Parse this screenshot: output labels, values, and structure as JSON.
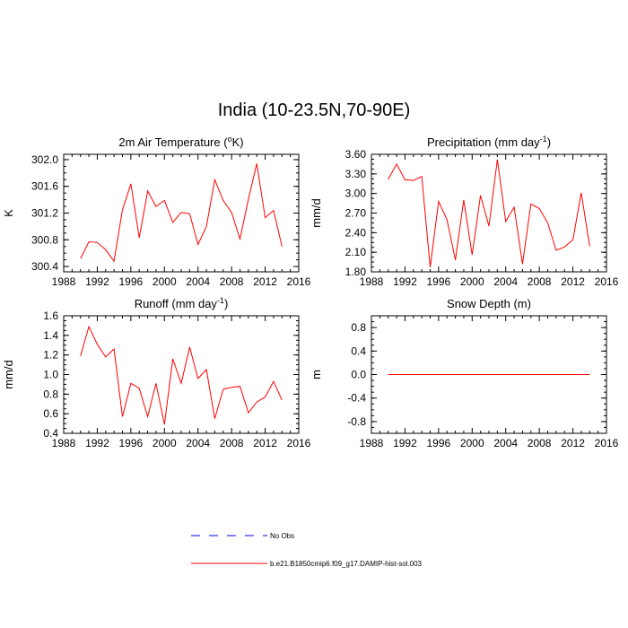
{
  "title": "India (10-23.5N,70-90E)",
  "colors": {
    "model": "#ff0000",
    "obs": "#0000ff",
    "axis": "#000000"
  },
  "legend": [
    {
      "label": "No Obs",
      "style": "dashed",
      "color": "#0000ff"
    },
    {
      "label": "b.e21.B1850cmip6.f09_g17.DAMIP-hist-sol.003",
      "style": "solid",
      "color": "#ff0000"
    }
  ],
  "chart_data": [
    {
      "type": "line",
      "title": "2m Air Temperature (°K)",
      "title_parts": [
        "2m Air Temperature (",
        "o",
        "K)"
      ],
      "ylabel": "K",
      "xlim": [
        1988,
        2016
      ],
      "ylim": [
        300.32,
        302.08
      ],
      "xticks": [
        1988,
        1992,
        1996,
        2000,
        2004,
        2008,
        2012,
        2016
      ],
      "yticks": [
        300.4,
        300.8,
        301.2,
        301.6,
        302.0
      ],
      "ytick_labels": [
        "300.4",
        "300.8",
        "301.2",
        "301.6",
        "302.0"
      ],
      "x": [
        1990,
        1991,
        1992,
        1993,
        1994,
        1995,
        1996,
        1997,
        1998,
        1999,
        2000,
        2001,
        2002,
        2003,
        2004,
        2005,
        2006,
        2007,
        2008,
        2009,
        2010,
        2011,
        2012,
        2013,
        2014
      ],
      "series": [
        {
          "values": [
            300.52,
            300.77,
            300.76,
            300.65,
            300.48,
            301.25,
            301.64,
            300.83,
            301.53,
            301.3,
            301.39,
            301.06,
            301.21,
            301.19,
            300.73,
            301.0,
            301.7,
            301.39,
            301.21,
            300.81,
            301.41,
            301.94,
            301.13,
            301.24,
            300.7
          ]
        }
      ]
    },
    {
      "type": "line",
      "title": "Precipitation (mm day⁻¹)",
      "title_parts": [
        "Precipitation (mm day",
        "-1",
        ")"
      ],
      "ylabel": "mm/d",
      "xlim": [
        1988,
        2016
      ],
      "ylim": [
        1.8,
        3.6
      ],
      "xticks": [
        1988,
        1992,
        1996,
        2000,
        2004,
        2008,
        2012,
        2016
      ],
      "yticks": [
        1.8,
        2.1,
        2.4,
        2.7,
        3.0,
        3.3,
        3.6
      ],
      "ytick_labels": [
        "1.80",
        "2.10",
        "2.40",
        "2.70",
        "3.00",
        "3.30",
        "3.60"
      ],
      "x": [
        1990,
        1991,
        1992,
        1993,
        1994,
        1995,
        1996,
        1997,
        1998,
        1999,
        2000,
        2001,
        2002,
        2003,
        2004,
        2005,
        2006,
        2007,
        2008,
        2009,
        2010,
        2011,
        2012,
        2013,
        2014
      ],
      "series": [
        {
          "values": [
            3.22,
            3.45,
            3.21,
            3.2,
            3.26,
            1.87,
            2.88,
            2.6,
            1.98,
            2.9,
            2.06,
            2.97,
            2.5,
            3.52,
            2.57,
            2.79,
            1.92,
            2.84,
            2.77,
            2.55,
            2.13,
            2.18,
            2.29,
            3.01,
            2.19
          ]
        }
      ]
    },
    {
      "type": "line",
      "title": "Runoff (mm day⁻¹)",
      "title_parts": [
        "Runoff (mm day",
        "-1",
        ")"
      ],
      "ylabel": "mm/d",
      "xlim": [
        1988,
        2016
      ],
      "ylim": [
        0.4,
        1.6
      ],
      "xticks": [
        1988,
        1992,
        1996,
        2000,
        2004,
        2008,
        2012,
        2016
      ],
      "yticks": [
        0.4,
        0.6,
        0.8,
        1.0,
        1.2,
        1.4,
        1.6
      ],
      "ytick_labels": [
        "0.4",
        "0.6",
        "0.8",
        "1.0",
        "1.2",
        "1.4",
        "1.6"
      ],
      "x": [
        1990,
        1991,
        1992,
        1993,
        1994,
        1995,
        1996,
        1997,
        1998,
        1999,
        2000,
        2001,
        2002,
        2003,
        2004,
        2005,
        2006,
        2007,
        2008,
        2009,
        2010,
        2011,
        2012,
        2013,
        2014
      ],
      "series": [
        {
          "values": [
            1.19,
            1.49,
            1.31,
            1.18,
            1.26,
            0.57,
            0.91,
            0.86,
            0.57,
            0.91,
            0.49,
            1.16,
            0.91,
            1.28,
            0.96,
            1.05,
            0.55,
            0.85,
            0.87,
            0.88,
            0.61,
            0.72,
            0.77,
            0.93,
            0.74
          ]
        }
      ]
    },
    {
      "type": "line",
      "title": "Snow Depth (m)",
      "title_parts": [
        "Snow Depth (m)"
      ],
      "ylabel": "m",
      "xlim": [
        1988,
        2016
      ],
      "ylim": [
        -1.0,
        1.0
      ],
      "xticks": [
        1988,
        1992,
        1996,
        2000,
        2004,
        2008,
        2012,
        2016
      ],
      "yticks": [
        -0.8,
        -0.4,
        0.0,
        0.4,
        0.8
      ],
      "ytick_labels": [
        "-0.8",
        "-0.4",
        "0.0",
        "0.4",
        "0.8"
      ],
      "x": [
        1990,
        1991,
        1992,
        1993,
        1994,
        1995,
        1996,
        1997,
        1998,
        1999,
        2000,
        2001,
        2002,
        2003,
        2004,
        2005,
        2006,
        2007,
        2008,
        2009,
        2010,
        2011,
        2012,
        2013,
        2014
      ],
      "series": [
        {
          "values": [
            0,
            0,
            0,
            0,
            0,
            0,
            0,
            0,
            0,
            0,
            0,
            0,
            0,
            0,
            0,
            0,
            0,
            0,
            0,
            0,
            0,
            0,
            0,
            0,
            0
          ]
        }
      ]
    }
  ]
}
